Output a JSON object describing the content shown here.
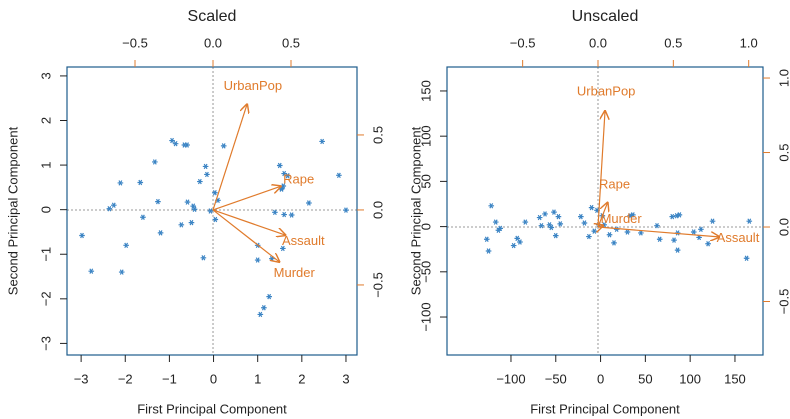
{
  "chart_data": [
    {
      "type": "biplot",
      "title": "Scaled",
      "x_label": "First Principal Component",
      "y_label": "Second Principal Component",
      "xlim": [
        -3.32,
        3.25
      ],
      "ylim": [
        -3.26,
        3.2
      ],
      "xticks": [
        {
          "value": -3,
          "label": "−3"
        },
        {
          "value": -2,
          "label": "−2"
        },
        {
          "value": -1,
          "label": "−1"
        },
        0,
        1,
        2,
        3
      ],
      "yticks": [
        {
          "value": -3,
          "label": "−3"
        },
        {
          "value": -2,
          "label": "−2"
        },
        {
          "value": -1,
          "label": "−1"
        },
        0,
        1,
        2,
        3
      ],
      "x2lim": [
        -0.936,
        0.923
      ],
      "y2lim": [
        -0.967,
        0.953
      ],
      "x2ticks": [
        {
          "value": -0.5,
          "label": "−0.5"
        },
        {
          "value": 0,
          "label": "0.0"
        },
        0.5
      ],
      "y2ticks": [
        {
          "value": -0.5,
          "label": "−0.5"
        },
        {
          "value": 0,
          "label": "0.0"
        },
        0.5
      ],
      "point_color": "#3b84c4",
      "loading_color": "#e07b2c",
      "x": [
        -2.98,
        -2.77,
        -2.36,
        -2.26,
        -2.11,
        -2.08,
        -1.98,
        -1.66,
        -1.6,
        -1.33,
        -1.26,
        -1.2,
        -0.94,
        -0.86,
        -0.73,
        -0.66,
        -0.6,
        -0.59,
        -0.5,
        -0.46,
        -0.43,
        -0.31,
        -0.23,
        -0.18,
        -0.15,
        -0.07,
        0.03,
        0.04,
        0.1,
        0.23,
        1.0,
        1.0,
        1.06,
        1.14,
        1.26,
        1.39,
        1.5,
        1.54,
        1.54,
        1.57,
        1.58,
        1.6,
        1.6,
        1.68,
        1.77,
        2.16,
        2.46,
        2.84,
        3.0,
        1.32
      ],
      "values": [
        -0.58,
        -1.38,
        0.02,
        0.1,
        0.6,
        -1.4,
        -0.8,
        0.61,
        -0.17,
        1.07,
        0.18,
        -0.52,
        1.55,
        1.48,
        -0.34,
        1.45,
        1.45,
        0.17,
        -0.29,
        0.08,
        0.01,
        0.63,
        -1.08,
        0.97,
        0.79,
        -0.03,
        0.38,
        -0.22,
        0.21,
        1.43,
        -0.8,
        -1.13,
        -2.35,
        -2.2,
        -1.95,
        -0.06,
        0.99,
        0.46,
        0.48,
        -0.87,
        0.53,
        0.81,
        -0.11,
        0.76,
        -0.12,
        0.15,
        1.53,
        0.77,
        -0.01,
        -1.1
      ],
      "loadings": {
        "labels": [
          "UrbanPop",
          "Rape",
          "Assault",
          "Murder"
        ],
        "x": [
          0.22,
          0.44,
          0.47,
          0.43
        ],
        "y": [
          0.71,
          0.16,
          -0.17,
          -0.35
        ]
      }
    },
    {
      "type": "biplot",
      "title": "Unscaled",
      "x_label": "First Principal Component",
      "y_label": "Second Principal Component",
      "xlim": [
        -171.4,
        181.3
      ],
      "ylim": [
        -142,
        176.5
      ],
      "xticks": [
        {
          "value": -100,
          "label": "−100"
        },
        {
          "value": -50,
          "label": "−50"
        },
        0,
        50,
        100,
        150
      ],
      "yticks": [
        {
          "value": -100,
          "label": "−100"
        },
        {
          "value": -50,
          "label": "−50"
        },
        0,
        50,
        100,
        150
      ],
      "x2lim": [
        -1.002,
        1.095
      ],
      "y2lim": [
        -0.859,
        1.074
      ],
      "x2ticks": [
        {
          "value": -0.5,
          "label": "−0.5"
        },
        {
          "value": 0,
          "label": "0.0"
        },
        0.5,
        {
          "value": 1,
          "label": "1.0"
        }
      ],
      "y2ticks": [
        {
          "value": -0.5,
          "label": "−0.5"
        },
        {
          "value": 0,
          "label": "0.0"
        },
        0.5,
        {
          "value": 1,
          "label": "1.0"
        }
      ],
      "point_color": "#3b84c4",
      "loading_color": "#e07b2c",
      "x": [
        -127,
        -125,
        -122,
        -117,
        -114,
        -112,
        -97,
        -93,
        -90,
        -84,
        -68,
        -66,
        -62,
        -57,
        -55,
        -52,
        -50,
        -47,
        -45,
        -22,
        -18,
        -13,
        -10,
        -7,
        -4,
        -2,
        2,
        4,
        10,
        15,
        18,
        30,
        33,
        36,
        45,
        63,
        66,
        80,
        82,
        86,
        86,
        85,
        88,
        104,
        110,
        112,
        120,
        125,
        163,
        166
      ],
      "values": [
        -14,
        -27,
        23,
        5,
        -4,
        -2,
        -21,
        -13,
        -17,
        5,
        10,
        1,
        14,
        2,
        -1,
        16,
        -10,
        11,
        3,
        11,
        4,
        -11,
        21,
        -5,
        18,
        2,
        12,
        2,
        -9,
        -18,
        -3,
        -6,
        12,
        13,
        -7,
        1,
        -14,
        11,
        -15,
        -26,
        -7,
        12,
        13,
        -6,
        -12,
        -3,
        -19,
        6,
        -35,
        6
      ],
      "loadings": {
        "labels": [
          "UrbanPop",
          "Rape",
          "Murder",
          "Assault"
        ],
        "x": [
          0.047,
          0.066,
          0.04,
          0.81
        ],
        "y": [
          0.785,
          0.17,
          0.013,
          -0.067
        ]
      }
    }
  ]
}
